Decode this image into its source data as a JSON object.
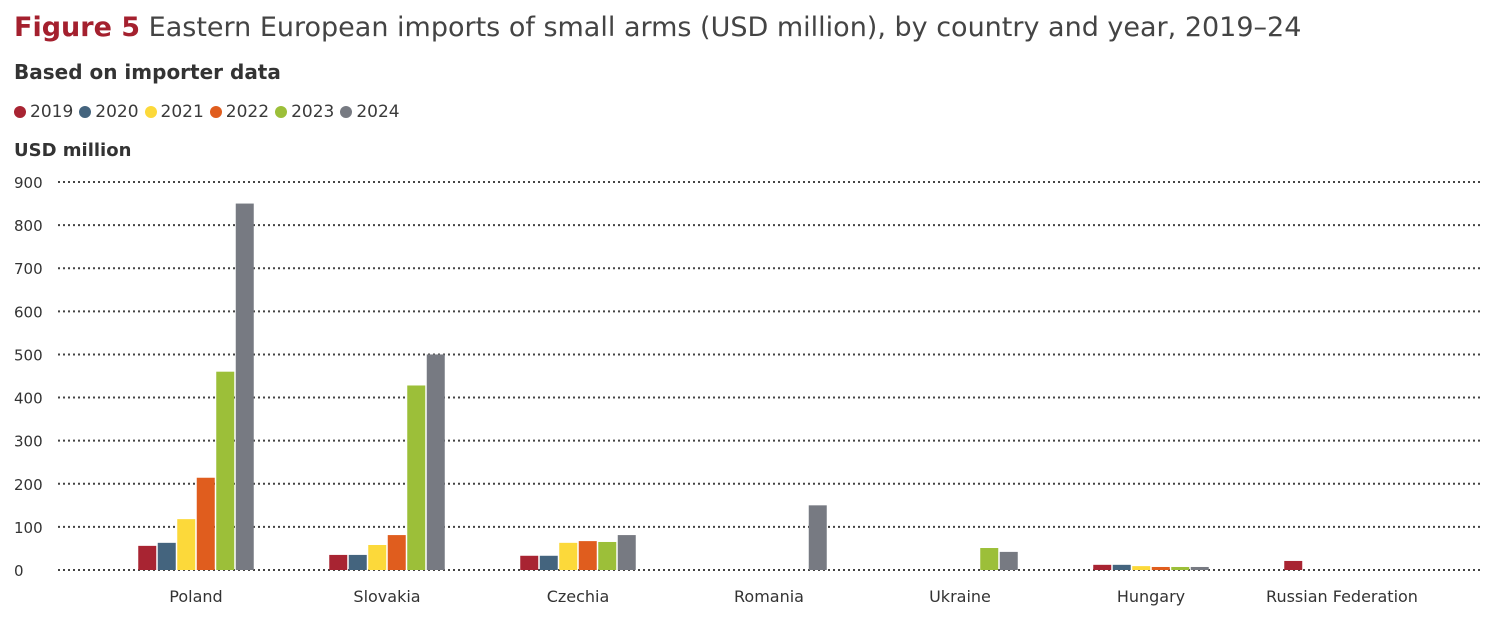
{
  "chart_data": {
    "type": "bar",
    "figure_label": "Figure 5",
    "title": "Eastern European imports of small arms (USD million), by country and year, 2019–24",
    "subtitle": "Based on importer data",
    "ylabel": "USD million",
    "xlabel": "",
    "ylim": [
      0,
      900
    ],
    "yticks": [
      0,
      100,
      200,
      300,
      400,
      500,
      600,
      700,
      800,
      900
    ],
    "grid": true,
    "legend_position": "top-left",
    "categories": [
      "Poland",
      "Slovakia",
      "Czechia",
      "Romania",
      "Ukraine",
      "Hungary",
      "Russian Federation"
    ],
    "series": [
      {
        "name": "2019",
        "color": "#a82432",
        "values": [
          56,
          35,
          33,
          0,
          0,
          12,
          21
        ]
      },
      {
        "name": "2020",
        "color": "#44647e",
        "values": [
          63,
          35,
          33,
          0,
          0,
          12,
          0
        ]
      },
      {
        "name": "2021",
        "color": "#fcd93a",
        "values": [
          118,
          58,
          63,
          0,
          0,
          9,
          0
        ]
      },
      {
        "name": "2022",
        "color": "#e05d1e",
        "values": [
          214,
          81,
          67,
          0,
          0,
          7,
          0
        ]
      },
      {
        "name": "2023",
        "color": "#9cbf39",
        "values": [
          460,
          428,
          65,
          0,
          51,
          7,
          0
        ]
      },
      {
        "name": "2024",
        "color": "#777a82",
        "values": [
          850,
          500,
          81,
          150,
          42,
          7,
          0
        ]
      }
    ]
  }
}
